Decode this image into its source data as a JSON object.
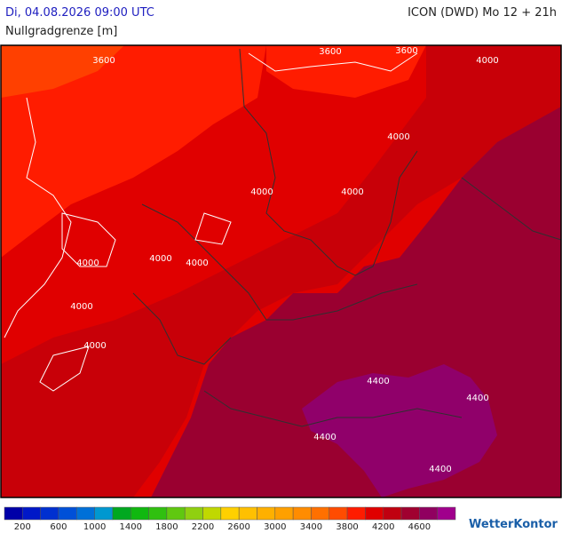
{
  "header": {
    "datetime": "Di, 04.08.2026 09:00 UTC",
    "model": "ICON (DWD) Mo 12 + 21h",
    "parameter": "Nullgradgrenze [m]"
  },
  "map": {
    "contour_labels": [
      3600,
      3600,
      3600,
      4000,
      4000,
      4000,
      4000,
      4000,
      4000,
      4000,
      4000,
      4000,
      4400,
      4400,
      4400,
      4400
    ]
  },
  "legend": {
    "colors": [
      "#0000a8",
      "#0018c8",
      "#0030d0",
      "#0050d8",
      "#0070d8",
      "#0098d0",
      "#00a820",
      "#10b810",
      "#30c010",
      "#60c810",
      "#90d010",
      "#c0d800",
      "#ffd000",
      "#ffc000",
      "#ffb000",
      "#ffa000",
      "#ff8c00",
      "#ff7000",
      "#ff4c00",
      "#ff1c00",
      "#e00000",
      "#c00010",
      "#a00030",
      "#900060",
      "#a0008c"
    ],
    "labels": [
      200,
      600,
      1000,
      1400,
      1800,
      2200,
      2600,
      3000,
      3400,
      3800,
      4200,
      4600
    ]
  },
  "brand": "WetterKontor"
}
